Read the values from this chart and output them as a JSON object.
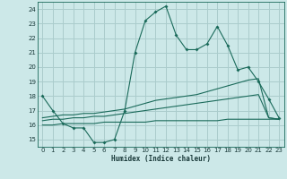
{
  "xlabel": "Humidex (Indice chaleur)",
  "bg_color": "#cce8e8",
  "grid_color": "#aacccc",
  "line_color": "#1a6a5a",
  "xlim": [
    -0.5,
    23.5
  ],
  "ylim": [
    14.5,
    24.5
  ],
  "yticks": [
    15,
    16,
    17,
    18,
    19,
    20,
    21,
    22,
    23,
    24
  ],
  "xticks": [
    0,
    1,
    2,
    3,
    4,
    5,
    6,
    7,
    8,
    9,
    10,
    11,
    12,
    13,
    14,
    15,
    16,
    17,
    18,
    19,
    20,
    21,
    22,
    23
  ],
  "line1_x": [
    0,
    1,
    2,
    3,
    4,
    5,
    6,
    7,
    8,
    9,
    10,
    11,
    12,
    13,
    14,
    15,
    16,
    17,
    18,
    19,
    20,
    21,
    22,
    23
  ],
  "line1_y": [
    18.0,
    17.0,
    16.1,
    15.8,
    15.8,
    14.8,
    14.8,
    15.0,
    17.0,
    21.0,
    23.2,
    23.8,
    24.2,
    22.2,
    21.2,
    21.2,
    21.6,
    22.8,
    21.5,
    19.8,
    20.0,
    19.0,
    17.8,
    16.5
  ],
  "line2_x": [
    0,
    1,
    2,
    3,
    4,
    5,
    6,
    7,
    8,
    9,
    10,
    11,
    12,
    13,
    14,
    15,
    16,
    17,
    18,
    19,
    20,
    21,
    22,
    23
  ],
  "line2_y": [
    16.5,
    16.6,
    16.7,
    16.7,
    16.8,
    16.8,
    16.9,
    17.0,
    17.1,
    17.3,
    17.5,
    17.7,
    17.8,
    17.9,
    18.0,
    18.1,
    18.3,
    18.5,
    18.7,
    18.9,
    19.1,
    19.2,
    16.5,
    16.4
  ],
  "line3_x": [
    0,
    1,
    2,
    3,
    4,
    5,
    6,
    7,
    8,
    9,
    10,
    11,
    12,
    13,
    14,
    15,
    16,
    17,
    18,
    19,
    20,
    21,
    22,
    23
  ],
  "line3_y": [
    16.3,
    16.4,
    16.4,
    16.5,
    16.5,
    16.6,
    16.6,
    16.7,
    16.8,
    16.9,
    17.0,
    17.1,
    17.2,
    17.3,
    17.4,
    17.5,
    17.6,
    17.7,
    17.8,
    17.9,
    18.0,
    18.1,
    16.5,
    16.4
  ],
  "line4_x": [
    0,
    1,
    2,
    3,
    4,
    5,
    6,
    7,
    8,
    9,
    10,
    11,
    12,
    13,
    14,
    15,
    16,
    17,
    18,
    19,
    20,
    21,
    22,
    23
  ],
  "line4_y": [
    16.0,
    16.0,
    16.1,
    16.1,
    16.1,
    16.1,
    16.2,
    16.2,
    16.2,
    16.2,
    16.2,
    16.3,
    16.3,
    16.3,
    16.3,
    16.3,
    16.3,
    16.3,
    16.4,
    16.4,
    16.4,
    16.4,
    16.4,
    16.4
  ]
}
